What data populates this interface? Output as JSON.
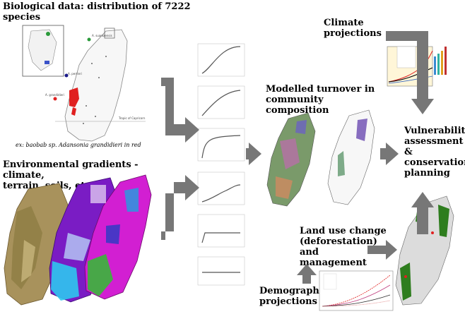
{
  "labels": {
    "biological_data": "Biological data: distribution of 7222\nspecies",
    "biological_caption": "ex: baobab sp. Adansonia grandidieri in red",
    "environmental_gradients": "Environmental gradients - climate,\nterrain, soils, etc.",
    "climate_projections": "Climate\nprojections",
    "modelled_turnover": "Modelled turnover in\ncommunity composition",
    "vulnerability": "Vulnerability\nassessment\n&\nconservation\nplanning",
    "land_use": "Land use change\n(deforestation) and\nmanagement",
    "demographic": "Demographic\nprojections"
  },
  "map_labels": {
    "species_a": "A. suarezensis",
    "species_b": "A. perrieri",
    "species_c": "A. grandidieri",
    "tropic": "Tropic of\nCapricorn"
  },
  "colors": {
    "arrow": "#777777",
    "highlight_species": "#e02020",
    "forest": "#2e7d1e",
    "map_purple": "#7a1cc4",
    "map_magenta": "#d21fd2"
  },
  "icons": [
    "arrow-elbow-down-right",
    "arrow-elbow-up-right",
    "arrow-right",
    "arrow-down",
    "arrow-up"
  ]
}
